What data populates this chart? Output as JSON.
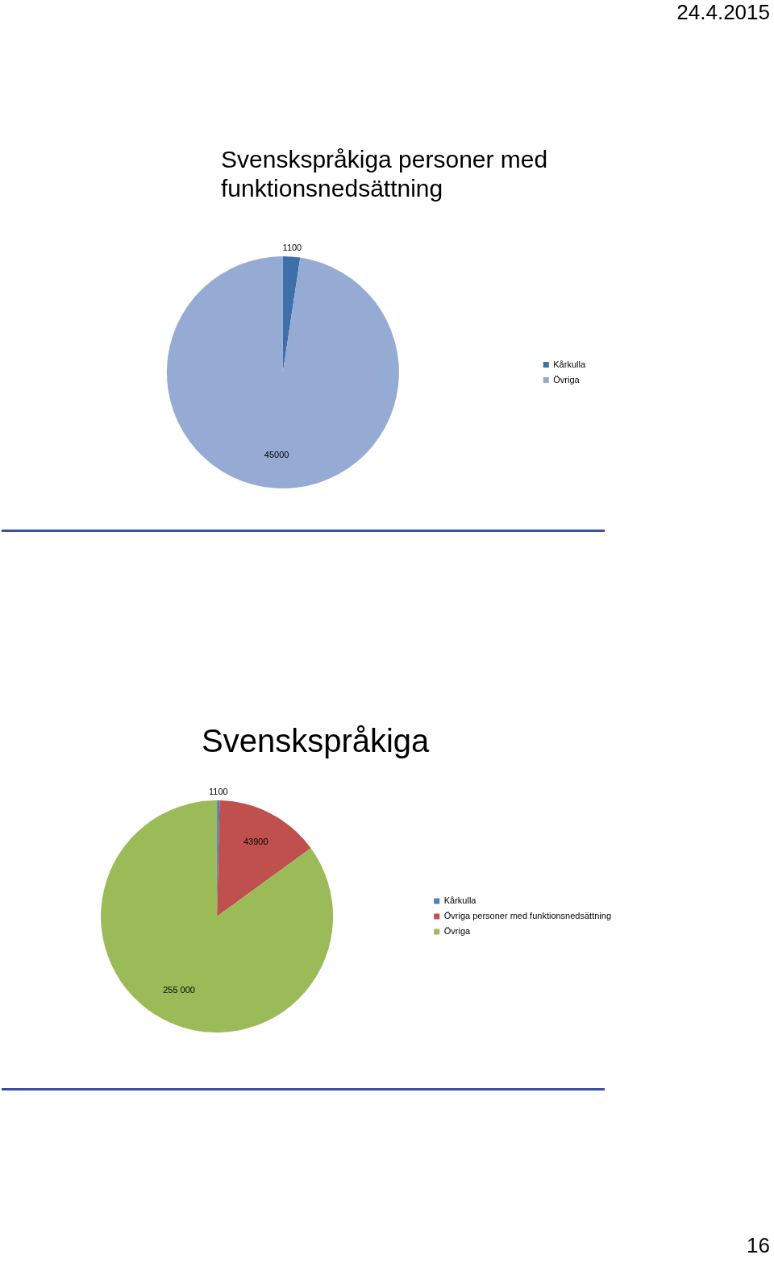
{
  "chart_data": [
    {
      "type": "pie",
      "title": "Svenskspråkiga personer med funktionsnedsättning",
      "categories": [
        "Kårkulla",
        "Övriga"
      ],
      "values": [
        1100,
        45000
      ],
      "colors": [
        "#3f6fa8",
        "#95abd3"
      ],
      "data_labels": true,
      "legend": "right",
      "annotations": [
        "24.4.2015"
      ]
    },
    {
      "type": "pie",
      "title": "Svenskspråkiga",
      "categories": [
        "Kårkulla",
        "Övriga personer med funktionsnedsättning",
        "Övriga"
      ],
      "values": [
        1100,
        43900,
        255000
      ],
      "colors": [
        "#4f81bd",
        "#c0504d",
        "#9bbb59"
      ],
      "value_labels": [
        "1100",
        "43900",
        "255 000"
      ],
      "legend": "right",
      "annotations": [
        "16"
      ]
    }
  ]
}
